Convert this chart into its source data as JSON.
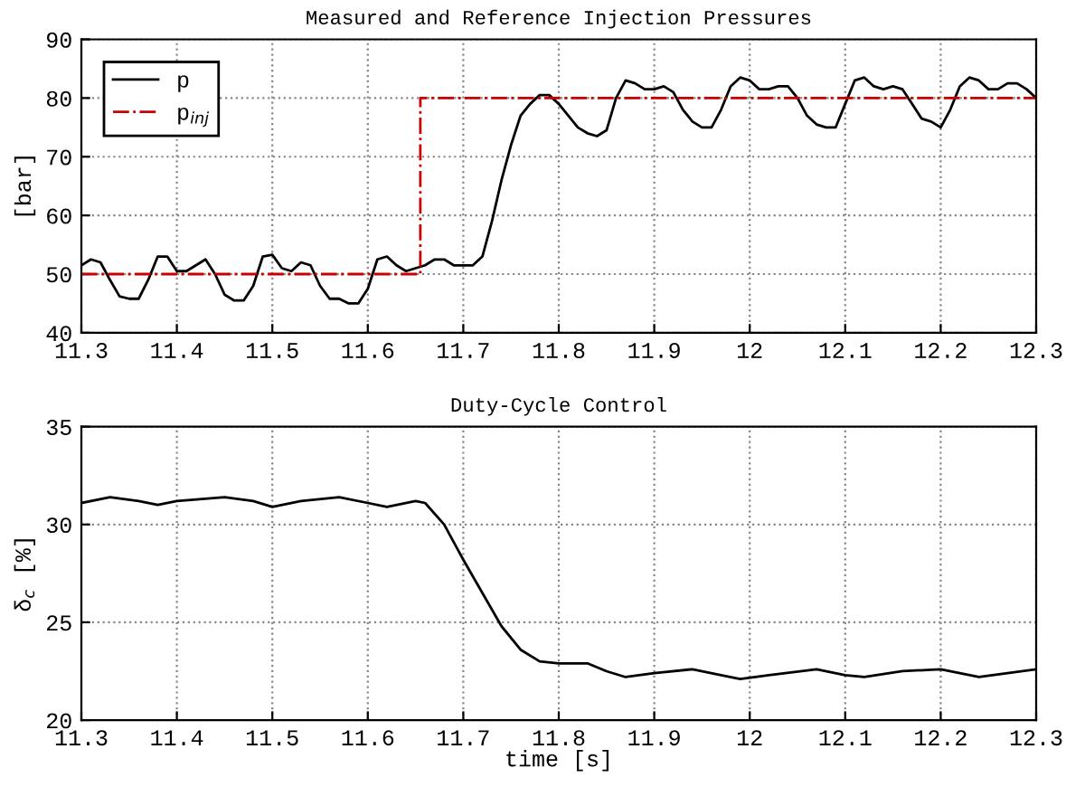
{
  "chart_data": [
    {
      "type": "line",
      "title": "Measured and Reference Injection Pressures",
      "ylabel": "[bar]",
      "xlim": [
        11.3,
        12.3
      ],
      "xticks": [
        11.3,
        11.4,
        11.5,
        11.6,
        11.7,
        11.8,
        11.9,
        12,
        12.1,
        12.2,
        12.3
      ],
      "ylim": [
        40,
        90
      ],
      "yticks": [
        40,
        50,
        60,
        70,
        80,
        90
      ],
      "grid": true,
      "legend": "top left",
      "series": [
        {
          "name": "p",
          "color": "#000000",
          "line_style": "solid",
          "x": [
            11.3,
            11.31,
            11.32,
            11.33,
            11.34,
            11.35,
            11.36,
            11.37,
            11.38,
            11.39,
            11.4,
            11.41,
            11.42,
            11.43,
            11.44,
            11.45,
            11.46,
            11.47,
            11.48,
            11.49,
            11.5,
            11.51,
            11.52,
            11.53,
            11.54,
            11.55,
            11.56,
            11.57,
            11.58,
            11.59,
            11.6,
            11.61,
            11.62,
            11.63,
            11.64,
            11.65,
            11.66,
            11.67,
            11.68,
            11.69,
            11.7,
            11.71,
            11.72,
            11.73,
            11.74,
            11.75,
            11.76,
            11.77,
            11.78,
            11.79,
            11.8,
            11.81,
            11.82,
            11.83,
            11.84,
            11.85,
            11.86,
            11.87,
            11.88,
            11.89,
            11.9,
            11.91,
            11.92,
            11.93,
            11.94,
            11.95,
            11.96,
            11.97,
            11.98,
            11.99,
            12.0,
            12.01,
            12.02,
            12.03,
            12.04,
            12.05,
            12.06,
            12.07,
            12.08,
            12.09,
            12.1,
            12.11,
            12.12,
            12.13,
            12.14,
            12.15,
            12.16,
            12.17,
            12.18,
            12.19,
            12.2,
            12.21,
            12.22,
            12.23,
            12.24,
            12.25,
            12.26,
            12.27,
            12.28,
            12.29,
            12.3
          ],
          "values": [
            51.5,
            52.5,
            52,
            49,
            46.2,
            45.8,
            45.8,
            49,
            53,
            53,
            50.5,
            50.5,
            51.5,
            52.5,
            50,
            46.5,
            45.5,
            45.5,
            48,
            53,
            53.3,
            51,
            50.5,
            52,
            51.5,
            48,
            45.8,
            45.8,
            45,
            45,
            47.5,
            52.5,
            53,
            51.5,
            50.5,
            51,
            51.5,
            52.5,
            52.5,
            51.5,
            51.5,
            51.5,
            53,
            59,
            66,
            72,
            77,
            79,
            80.5,
            80.5,
            79,
            77,
            75,
            74,
            73.5,
            74.5,
            80,
            83,
            82.5,
            81.5,
            81.5,
            82,
            81,
            78,
            76,
            75,
            75,
            78,
            82,
            83.5,
            83,
            81.5,
            81.5,
            82,
            82,
            80,
            77,
            75.5,
            75,
            75,
            79,
            83,
            83.5,
            82,
            81.5,
            82,
            81.5,
            79,
            76.5,
            76,
            75,
            78,
            82,
            83.5,
            83,
            81.5,
            81.5,
            82.5,
            82.5,
            81.5,
            80
          ]
        },
        {
          "name": "p$_{inj}$",
          "color": "#cc0000",
          "line_style": "dashdot",
          "x": [
            11.3,
            11.655,
            11.655,
            12.3
          ],
          "values": [
            50,
            50,
            80,
            80
          ]
        }
      ]
    },
    {
      "type": "line",
      "title": "Duty-Cycle Control",
      "ylabel": "δ$_{c}$ [%]",
      "xlabel": "time [s]",
      "xlim": [
        11.3,
        12.3
      ],
      "xticks": [
        11.3,
        11.4,
        11.5,
        11.6,
        11.7,
        11.8,
        11.9,
        12,
        12.1,
        12.2,
        12.3
      ],
      "ylim": [
        20,
        35
      ],
      "yticks": [
        20,
        25,
        30,
        35
      ],
      "grid": true,
      "legend": false,
      "series": [
        {
          "color": "#000000",
          "line_style": "solid",
          "x": [
            11.3,
            11.33,
            11.36,
            11.38,
            11.4,
            11.45,
            11.48,
            11.5,
            11.53,
            11.57,
            11.6,
            11.62,
            11.65,
            11.66,
            11.68,
            11.7,
            11.72,
            11.74,
            11.76,
            11.78,
            11.8,
            11.83,
            11.85,
            11.87,
            11.9,
            11.94,
            11.97,
            11.99,
            12.02,
            12.07,
            12.1,
            12.12,
            12.16,
            12.2,
            12.24,
            12.27,
            12.3
          ],
          "values": [
            31.1,
            31.4,
            31.2,
            31.0,
            31.2,
            31.4,
            31.2,
            30.9,
            31.2,
            31.4,
            31.1,
            30.9,
            31.2,
            31.1,
            30.0,
            28.2,
            26.5,
            24.8,
            23.6,
            23.0,
            22.9,
            22.9,
            22.5,
            22.2,
            22.4,
            22.6,
            22.3,
            22.1,
            22.3,
            22.6,
            22.3,
            22.2,
            22.5,
            22.6,
            22.2,
            22.4,
            22.6
          ]
        }
      ]
    }
  ]
}
